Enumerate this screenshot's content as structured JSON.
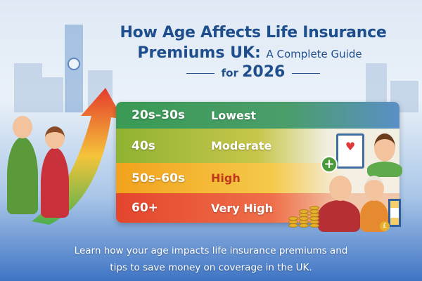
{
  "title": {
    "line1": "How Age Affects Life Insurance",
    "line2_bold": "Premiums UK:",
    "line2_rest": "A Complete Guide",
    "line3_prefix": "for",
    "line3_year": "2026"
  },
  "age_table": {
    "rows": [
      {
        "age": "20s–30s",
        "level": "Lowest",
        "color": "#3a9a55"
      },
      {
        "age": "40s",
        "level": "Moderate",
        "color": "#8fb332"
      },
      {
        "age": "50s–60s",
        "level": "High",
        "color": "#f2a21c"
      },
      {
        "age": "60+",
        "level": "Very High",
        "color": "#e4452c"
      }
    ]
  },
  "footer": {
    "line1": "Learn how your age impacts life insurance premiums and",
    "line2": "tips to save money on coverage in the UK."
  },
  "colors": {
    "title": "#1f4e8c",
    "background_bottom": "#3f74c4"
  }
}
